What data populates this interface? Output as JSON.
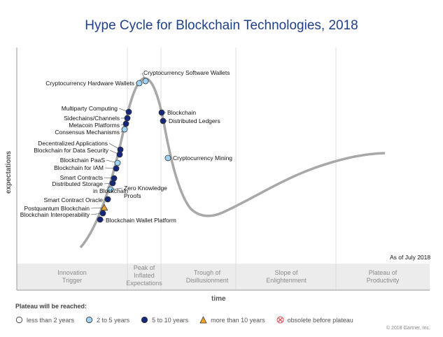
{
  "title": "Hype Cycle for Blockchain Technologies, 2018",
  "y_axis_label": "expectations",
  "x_axis_label": "time",
  "as_of": "As of July 2018",
  "phases": [
    [
      "Innovation",
      "Trigger"
    ],
    [
      "Peak of",
      "Inflated",
      "Expectations"
    ],
    [
      "Trough of",
      "Disillusionment"
    ],
    [
      "Slope of",
      "Enlightenment"
    ],
    [
      "Plateau of",
      "Productivity"
    ]
  ],
  "technologies": [
    {
      "name": "Cryptocurrency Software Wallets",
      "plateau": "2-5"
    },
    {
      "name": "Cryptocurrency Hardware Wallets",
      "plateau": "2-5"
    },
    {
      "name": "Multiparty Computing",
      "plateau": "5-10"
    },
    {
      "name": "Sidechains/Channels",
      "plateau": "5-10"
    },
    {
      "name": "Metacoin Platforms",
      "plateau": "5-10"
    },
    {
      "name": "Consensus Mechanisms",
      "plateau": "2-5"
    },
    {
      "name": "Decentralized Applications",
      "plateau": "5-10"
    },
    {
      "name": "Blockchain for Data Security",
      "plateau": "5-10"
    },
    {
      "name": "Blockchain PaaS",
      "plateau": "2-5"
    },
    {
      "name": "Blockchain for IAM",
      "plateau": "5-10"
    },
    {
      "name": "Smart Contracts",
      "plateau": "5-10"
    },
    {
      "name": "Distributed Storage in Blockchain",
      "plateau": "5-10"
    },
    {
      "name": "Zero Knowledge Proofs",
      "plateau": "2-5"
    },
    {
      "name": "Smart Contract Oracle",
      "plateau": "5-10"
    },
    {
      "name": "Postquantum Blockchain",
      "plateau": ">10"
    },
    {
      "name": "Blockchain Interoperability",
      "plateau": "5-10"
    },
    {
      "name": "Blockchain Wallet Platform",
      "plateau": "5-10"
    },
    {
      "name": "Blockchain",
      "plateau": "5-10"
    },
    {
      "name": "Distributed Ledgers",
      "plateau": "5-10"
    },
    {
      "name": "Cryptocurrency Mining",
      "plateau": "2-5"
    }
  ],
  "legend": {
    "title": "Plateau will be reached:",
    "items": [
      {
        "key": "<2",
        "label": "less than 2 years"
      },
      {
        "key": "2-5",
        "label": "2 to 5 years"
      },
      {
        "key": "5-10",
        "label": "5 to 10 years"
      },
      {
        "key": ">10",
        "label": "more than 10 years"
      },
      {
        "key": "obsolete",
        "label": "obsolete before plateau"
      }
    ]
  },
  "colors": {
    "title": "#1e3f8a",
    "curve": "#a8a8a8",
    "less_than_2": "#ffffff",
    "2-5": "#9fd3f2",
    "5-10": "#15287a",
    ">10": "#f2a52a",
    "obsolete": "#e03c3c"
  },
  "copyright": "© 2018 Gartner, Inc."
}
